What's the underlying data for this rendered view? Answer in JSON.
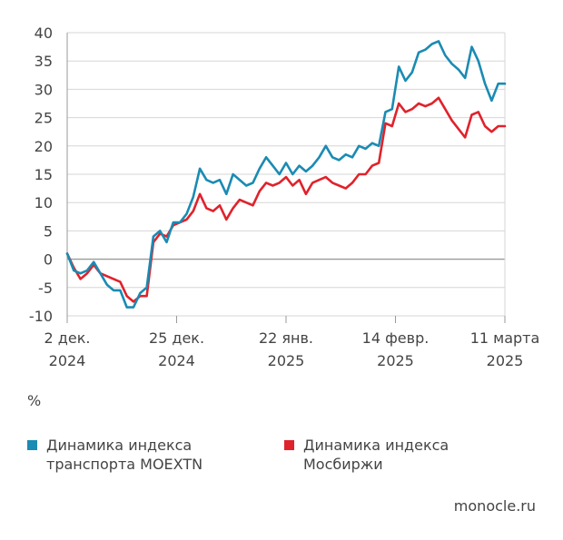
{
  "chart_data": {
    "type": "line",
    "unit_label": "%",
    "ylim": [
      -10,
      40
    ],
    "y_ticks": [
      "-10",
      "-5",
      "0",
      "5",
      "10",
      "15",
      "20",
      "25",
      "30",
      "35",
      "40"
    ],
    "x_ticks": [
      {
        "line1": "2 дек.",
        "line2": "2024"
      },
      {
        "line1": "25 дек.",
        "line2": "2024"
      },
      {
        "line1": "22 янв.",
        "line2": "2025"
      },
      {
        "line1": "14 февр.",
        "line2": "2025"
      },
      {
        "line1": "11 марта",
        "line2": "2025"
      }
    ],
    "grid": "horizontal",
    "legend_position": "bottom",
    "series": [
      {
        "name": "Динамика индекса транспорта MOEXTN",
        "legend_lines": [
          "Динамика индекса",
          "транспорта MOEXTN"
        ],
        "color": "#1a8bb3",
        "values": [
          1.0,
          -2.0,
          -2.5,
          -2.0,
          -0.5,
          -2.5,
          -4.5,
          -5.5,
          -5.5,
          -8.5,
          -8.5,
          -6.0,
          -5.0,
          4.0,
          5.0,
          3.0,
          6.5,
          6.5,
          8.0,
          11.0,
          16.0,
          14.0,
          13.5,
          14.0,
          11.5,
          15.0,
          14.0,
          13.0,
          13.5,
          16.0,
          18.0,
          16.5,
          15.0,
          17.0,
          15.0,
          16.5,
          15.5,
          16.5,
          18.0,
          20.0,
          18.0,
          17.5,
          18.5,
          18.0,
          20.0,
          19.5,
          20.5,
          20.0,
          26.0,
          26.5,
          34.0,
          31.5,
          33.0,
          36.5,
          37.0,
          38.0,
          38.5,
          36.0,
          34.5,
          33.5,
          32.0,
          37.5,
          35.0,
          31.0,
          28.0,
          31.0,
          31.0
        ]
      },
      {
        "name": "Динамика индекса Мосбиржи",
        "legend_lines": [
          "Динамика индекса",
          "Мосбиржи"
        ],
        "color": "#e0222b",
        "values": [
          1.0,
          -1.5,
          -3.5,
          -2.5,
          -1.0,
          -2.5,
          -3.0,
          -3.5,
          -4.0,
          -6.5,
          -7.5,
          -6.5,
          -6.5,
          3.0,
          4.5,
          4.0,
          6.0,
          6.5,
          7.0,
          8.5,
          11.5,
          9.0,
          8.5,
          9.5,
          7.0,
          9.0,
          10.5,
          10.0,
          9.5,
          12.0,
          13.5,
          13.0,
          13.5,
          14.5,
          13.0,
          14.0,
          11.5,
          13.5,
          14.0,
          14.5,
          13.5,
          13.0,
          12.5,
          13.5,
          15.0,
          15.0,
          16.5,
          17.0,
          24.0,
          23.5,
          27.5,
          26.0,
          26.5,
          27.5,
          27.0,
          27.5,
          28.5,
          26.5,
          24.5,
          23.0,
          21.5,
          25.5,
          26.0,
          23.5,
          22.5,
          23.5,
          23.5
        ]
      }
    ]
  },
  "source": "monocle.ru"
}
